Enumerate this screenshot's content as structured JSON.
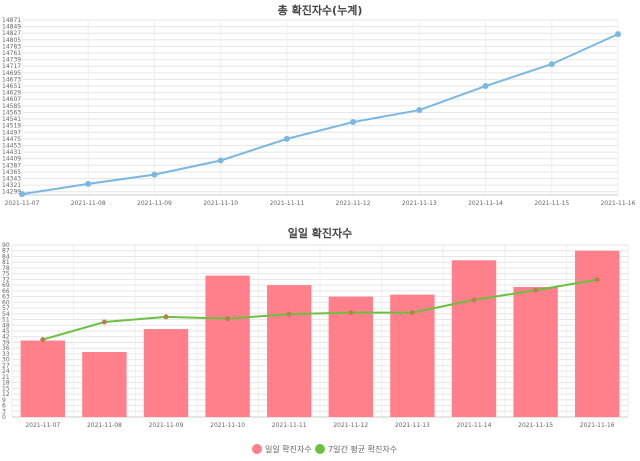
{
  "chart_data": [
    {
      "type": "line",
      "title": "총 확진자수(누계)",
      "categories": [
        "2021-11-07",
        "2021-11-08",
        "2021-11-09",
        "2021-11-10",
        "2021-11-11",
        "2021-11-12",
        "2021-11-13",
        "2021-11-14",
        "2021-11-15",
        "2021-11-16"
      ],
      "series": [
        {
          "values": [
            14291,
            14325,
            14356,
            14403,
            14475,
            14531,
            14571,
            14651,
            14724,
            14824
          ]
        }
      ],
      "y_ticks": [
        "14299",
        "14321",
        "14343",
        "14365",
        "14387",
        "14409",
        "14431",
        "14453",
        "14475",
        "14497",
        "14519",
        "14541",
        "14563",
        "14585",
        "14607",
        "14629",
        "14651",
        "14673",
        "14695",
        "14717",
        "14739",
        "14761",
        "14783",
        "14805",
        "14827",
        "14849",
        "14871"
      ],
      "ylim": [
        14288,
        14871
      ],
      "grid": true,
      "legend": "none",
      "colors": {
        "line": "#7ab8e3",
        "point": "#7ab8e3"
      }
    },
    {
      "type": "bar",
      "title": "일일 확진자수",
      "categories": [
        "2021-11-07",
        "2021-11-08",
        "2021-11-09",
        "2021-11-10",
        "2021-11-11",
        "2021-11-12",
        "2021-11-13",
        "2021-11-14",
        "2021-11-15",
        "2021-11-16"
      ],
      "series": [
        {
          "name": "일일 확진자수",
          "type": "bar",
          "values": [
            40,
            34,
            46,
            74,
            69,
            63,
            64,
            82,
            68,
            87
          ]
        },
        {
          "name": "7일간 평균 확진자수",
          "type": "line",
          "values": [
            40.5,
            49.7,
            52.4,
            51.5,
            53.8,
            54.6,
            54.6,
            61.3,
            66.3,
            71.9
          ]
        }
      ],
      "y_ticks": [
        "0",
        "3",
        "6",
        "9",
        "12",
        "15",
        "18",
        "21",
        "24",
        "27",
        "30",
        "33",
        "36",
        "39",
        "42",
        "45",
        "48",
        "51",
        "54",
        "57",
        "60",
        "63",
        "66",
        "69",
        "72",
        "75",
        "78",
        "81",
        "84",
        "87",
        "90"
      ],
      "ylim": [
        0,
        90
      ],
      "grid": true,
      "legend": "bottom",
      "colors": {
        "bar": "#ff7f8a",
        "line": "#6cc03f",
        "point": "#b3834a"
      }
    }
  ]
}
